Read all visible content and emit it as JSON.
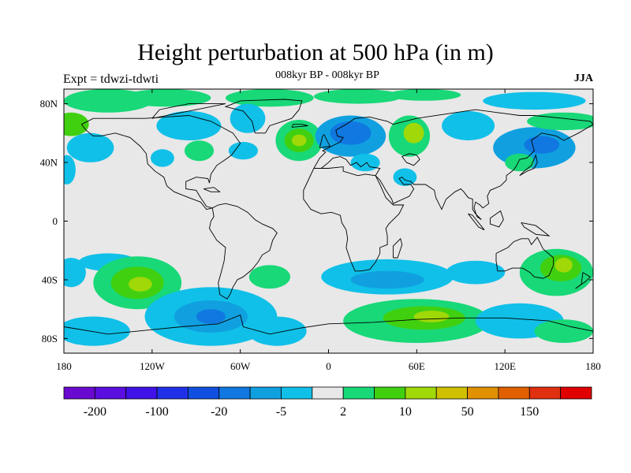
{
  "title": "Height perturbation at 500 hPa (in m)",
  "left_label": "Expt = tdwzi-tdwti",
  "center_label": "008kyr BP - 008kyr BP",
  "right_label": "JJA",
  "map": {
    "projection": "cylindrical-equidistant",
    "lon_range": [
      -180,
      180
    ],
    "lat_range": [
      -90,
      90
    ],
    "background_color": "#e8e8e8",
    "y_ticks": [
      {
        "lat": 80,
        "label": "80N"
      },
      {
        "lat": 40,
        "label": "40N"
      },
      {
        "lat": 0,
        "label": "0"
      },
      {
        "lat": -40,
        "label": "40S"
      },
      {
        "lat": -80,
        "label": "80S"
      }
    ],
    "x_ticks": [
      {
        "lon": -180,
        "label": "180"
      },
      {
        "lon": -120,
        "label": "120W"
      },
      {
        "lon": -60,
        "label": "60W"
      },
      {
        "lon": 0,
        "label": "0"
      },
      {
        "lon": 60,
        "label": "60E"
      },
      {
        "lon": 120,
        "label": "120E"
      },
      {
        "lon": 180,
        "label": "180"
      }
    ],
    "anomalies": [
      {
        "lon": -150,
        "lat": 82,
        "rx": 30,
        "ry": 8,
        "level": 9
      },
      {
        "lon": -110,
        "lat": 84,
        "rx": 30,
        "ry": 6,
        "level": 9
      },
      {
        "lon": -40,
        "lat": 84,
        "rx": 30,
        "ry": 6,
        "level": 9
      },
      {
        "lon": 20,
        "lat": 85,
        "rx": 30,
        "ry": 5,
        "level": 9
      },
      {
        "lon": 65,
        "lat": 86,
        "rx": 25,
        "ry": 4,
        "level": 9
      },
      {
        "lon": -175,
        "lat": 66,
        "rx": 12,
        "ry": 8,
        "level": 10
      },
      {
        "lon": -162,
        "lat": 50,
        "rx": 16,
        "ry": 10,
        "level": 7
      },
      {
        "lon": -113,
        "lat": 43,
        "rx": 8,
        "ry": 6,
        "level": 7
      },
      {
        "lon": -95,
        "lat": 65,
        "rx": 22,
        "ry": 10,
        "level": 7
      },
      {
        "lon": -88,
        "lat": 48,
        "rx": 10,
        "ry": 7,
        "level": 9
      },
      {
        "lon": -55,
        "lat": 70,
        "rx": 12,
        "ry": 10,
        "level": 7
      },
      {
        "lon": -58,
        "lat": 48,
        "rx": 10,
        "ry": 6,
        "level": 7
      },
      {
        "lon": -20,
        "lat": 55,
        "rx": 16,
        "ry": 14,
        "level": 9
      },
      {
        "lon": -20,
        "lat": 55,
        "rx": 10,
        "ry": 8,
        "level": 10
      },
      {
        "lon": -20,
        "lat": 55,
        "rx": 5,
        "ry": 4,
        "level": 11
      },
      {
        "lon": 15,
        "lat": 58,
        "rx": 24,
        "ry": 14,
        "level": 6
      },
      {
        "lon": 15,
        "lat": 60,
        "rx": 14,
        "ry": 8,
        "level": 5
      },
      {
        "lon": 25,
        "lat": 40,
        "rx": 10,
        "ry": 6,
        "level": 7
      },
      {
        "lon": 55,
        "lat": 58,
        "rx": 14,
        "ry": 14,
        "level": 9
      },
      {
        "lon": 58,
        "lat": 60,
        "rx": 7,
        "ry": 7,
        "level": 11
      },
      {
        "lon": 52,
        "lat": 30,
        "rx": 8,
        "ry": 6,
        "level": 7
      },
      {
        "lon": 95,
        "lat": 65,
        "rx": 18,
        "ry": 10,
        "level": 7
      },
      {
        "lon": 140,
        "lat": 50,
        "rx": 28,
        "ry": 14,
        "level": 6
      },
      {
        "lon": 145,
        "lat": 52,
        "rx": 12,
        "ry": 6,
        "level": 5
      },
      {
        "lon": 130,
        "lat": 40,
        "rx": 10,
        "ry": 6,
        "level": 9
      },
      {
        "lon": 160,
        "lat": 68,
        "rx": 25,
        "ry": 6,
        "level": 9
      },
      {
        "lon": 140,
        "lat": 82,
        "rx": 35,
        "ry": 6,
        "level": 7
      },
      {
        "lon": -178,
        "lat": 35,
        "rx": 6,
        "ry": 10,
        "level": 7
      },
      {
        "lon": -150,
        "lat": -28,
        "rx": 20,
        "ry": 6,
        "level": 7
      },
      {
        "lon": -130,
        "lat": -42,
        "rx": 30,
        "ry": 18,
        "level": 9
      },
      {
        "lon": -130,
        "lat": -42,
        "rx": 18,
        "ry": 11,
        "level": 10
      },
      {
        "lon": -128,
        "lat": -43,
        "rx": 8,
        "ry": 5,
        "level": 11
      },
      {
        "lon": -175,
        "lat": -35,
        "rx": 10,
        "ry": 10,
        "level": 7
      },
      {
        "lon": -160,
        "lat": -75,
        "rx": 25,
        "ry": 10,
        "level": 7
      },
      {
        "lon": -80,
        "lat": -65,
        "rx": 45,
        "ry": 20,
        "level": 7
      },
      {
        "lon": -80,
        "lat": -65,
        "rx": 25,
        "ry": 11,
        "level": 6
      },
      {
        "lon": -80,
        "lat": -65,
        "rx": 10,
        "ry": 5,
        "level": 5
      },
      {
        "lon": -40,
        "lat": -38,
        "rx": 14,
        "ry": 8,
        "level": 9
      },
      {
        "lon": -35,
        "lat": -75,
        "rx": 20,
        "ry": 10,
        "level": 7
      },
      {
        "lon": 40,
        "lat": -38,
        "rx": 45,
        "ry": 12,
        "level": 7
      },
      {
        "lon": 40,
        "lat": -40,
        "rx": 25,
        "ry": 6,
        "level": 6
      },
      {
        "lon": 60,
        "lat": -68,
        "rx": 50,
        "ry": 15,
        "level": 9
      },
      {
        "lon": 65,
        "lat": -66,
        "rx": 28,
        "ry": 8,
        "level": 10
      },
      {
        "lon": 70,
        "lat": -65,
        "rx": 12,
        "ry": 4,
        "level": 11
      },
      {
        "lon": 100,
        "lat": -35,
        "rx": 20,
        "ry": 8,
        "level": 7
      },
      {
        "lon": 155,
        "lat": -35,
        "rx": 25,
        "ry": 16,
        "level": 9
      },
      {
        "lon": 158,
        "lat": -32,
        "rx": 14,
        "ry": 9,
        "level": 10
      },
      {
        "lon": 160,
        "lat": -30,
        "rx": 6,
        "ry": 5,
        "level": 11
      },
      {
        "lon": 130,
        "lat": -68,
        "rx": 30,
        "ry": 12,
        "level": 7
      },
      {
        "lon": 160,
        "lat": -75,
        "rx": 20,
        "ry": 8,
        "level": 9
      }
    ]
  },
  "colorbar": {
    "colors": [
      "#6a0ad0",
      "#5a0ee0",
      "#4012e8",
      "#2030e8",
      "#1050e0",
      "#1078e0",
      "#10a0e0",
      "#10c0e8",
      "#e8e8e8",
      "#18d878",
      "#40d010",
      "#a0d808",
      "#d0c000",
      "#e09000",
      "#e06000",
      "#e03010",
      "#e00000"
    ],
    "labels": [
      "-200",
      "-100",
      "-20",
      "-5",
      "2",
      "10",
      "50",
      "150"
    ],
    "label_positions": [
      1,
      3,
      5,
      7,
      9,
      11,
      13,
      15
    ]
  }
}
